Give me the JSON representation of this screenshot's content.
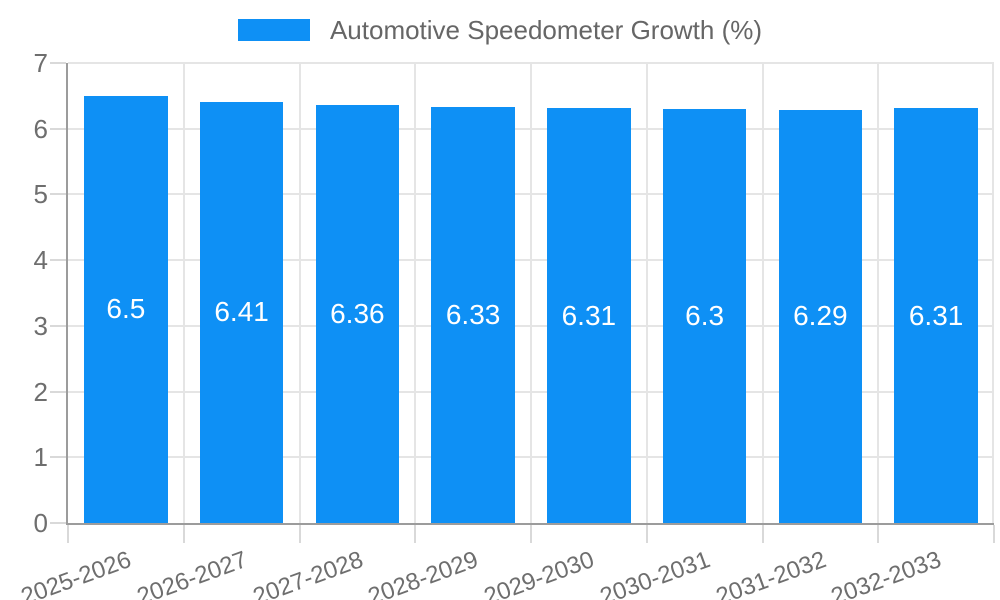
{
  "chart_data": {
    "type": "bar",
    "title": "Automotive Speedometer Growth (%)",
    "categories": [
      "2025-2026",
      "2026-2027",
      "2027-2028",
      "2028-2029",
      "2029-2030",
      "2030-2031",
      "2031-2032",
      "2032-2033"
    ],
    "series": [
      {
        "name": "Automotive Speedometer Growth (%)",
        "values": [
          6.5,
          6.41,
          6.36,
          6.33,
          6.31,
          6.3,
          6.29,
          6.31
        ],
        "color": "#0E90F5"
      }
    ],
    "value_labels": [
      "6.5",
      "6.41",
      "6.36",
      "6.33",
      "6.31",
      "6.3",
      "6.29",
      "6.31"
    ],
    "xlabel": "",
    "ylabel": "",
    "ylim": [
      0,
      7
    ],
    "yticks": [
      0,
      1,
      2,
      3,
      4,
      5,
      6,
      7
    ],
    "grid": true,
    "legend_position": "top-center",
    "colors": {
      "bar": "#0E90F5",
      "bar_label": "#FFFFFF",
      "axis_text": "#6E6E6E",
      "legend_text": "#666666",
      "grid": "#E5E5E5",
      "tick": "#D9D9D9",
      "axis_line": "#9C9C9C",
      "background": "#FFFFFF"
    }
  }
}
